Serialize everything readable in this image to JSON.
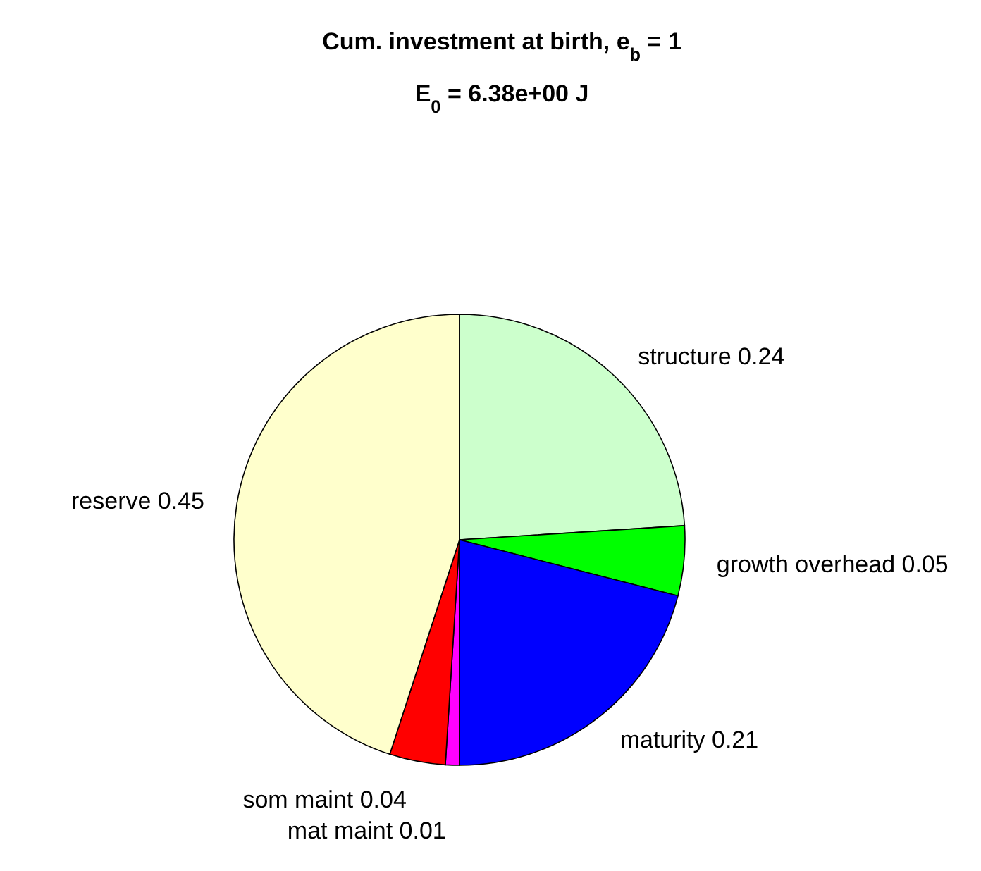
{
  "chart_data": {
    "type": "pie",
    "title": "Cum. investment at birth, e$_{b}$ = 1",
    "subtitle": "E$_{0}$ = 6.38e+00 J",
    "categories": [
      "structure 0.24",
      "growth overhead 0.05",
      "maturity 0.21",
      "mat maint 0.01",
      "som maint 0.04",
      "reserve 0.45"
    ],
    "values": [
      0.24,
      0.05,
      0.21,
      0.01,
      0.04,
      0.45
    ],
    "colors": [
      "#ccffcc",
      "#00ff00",
      "#0000ff",
      "#ff00ff",
      "#ff0000",
      "#ffffcc"
    ]
  }
}
